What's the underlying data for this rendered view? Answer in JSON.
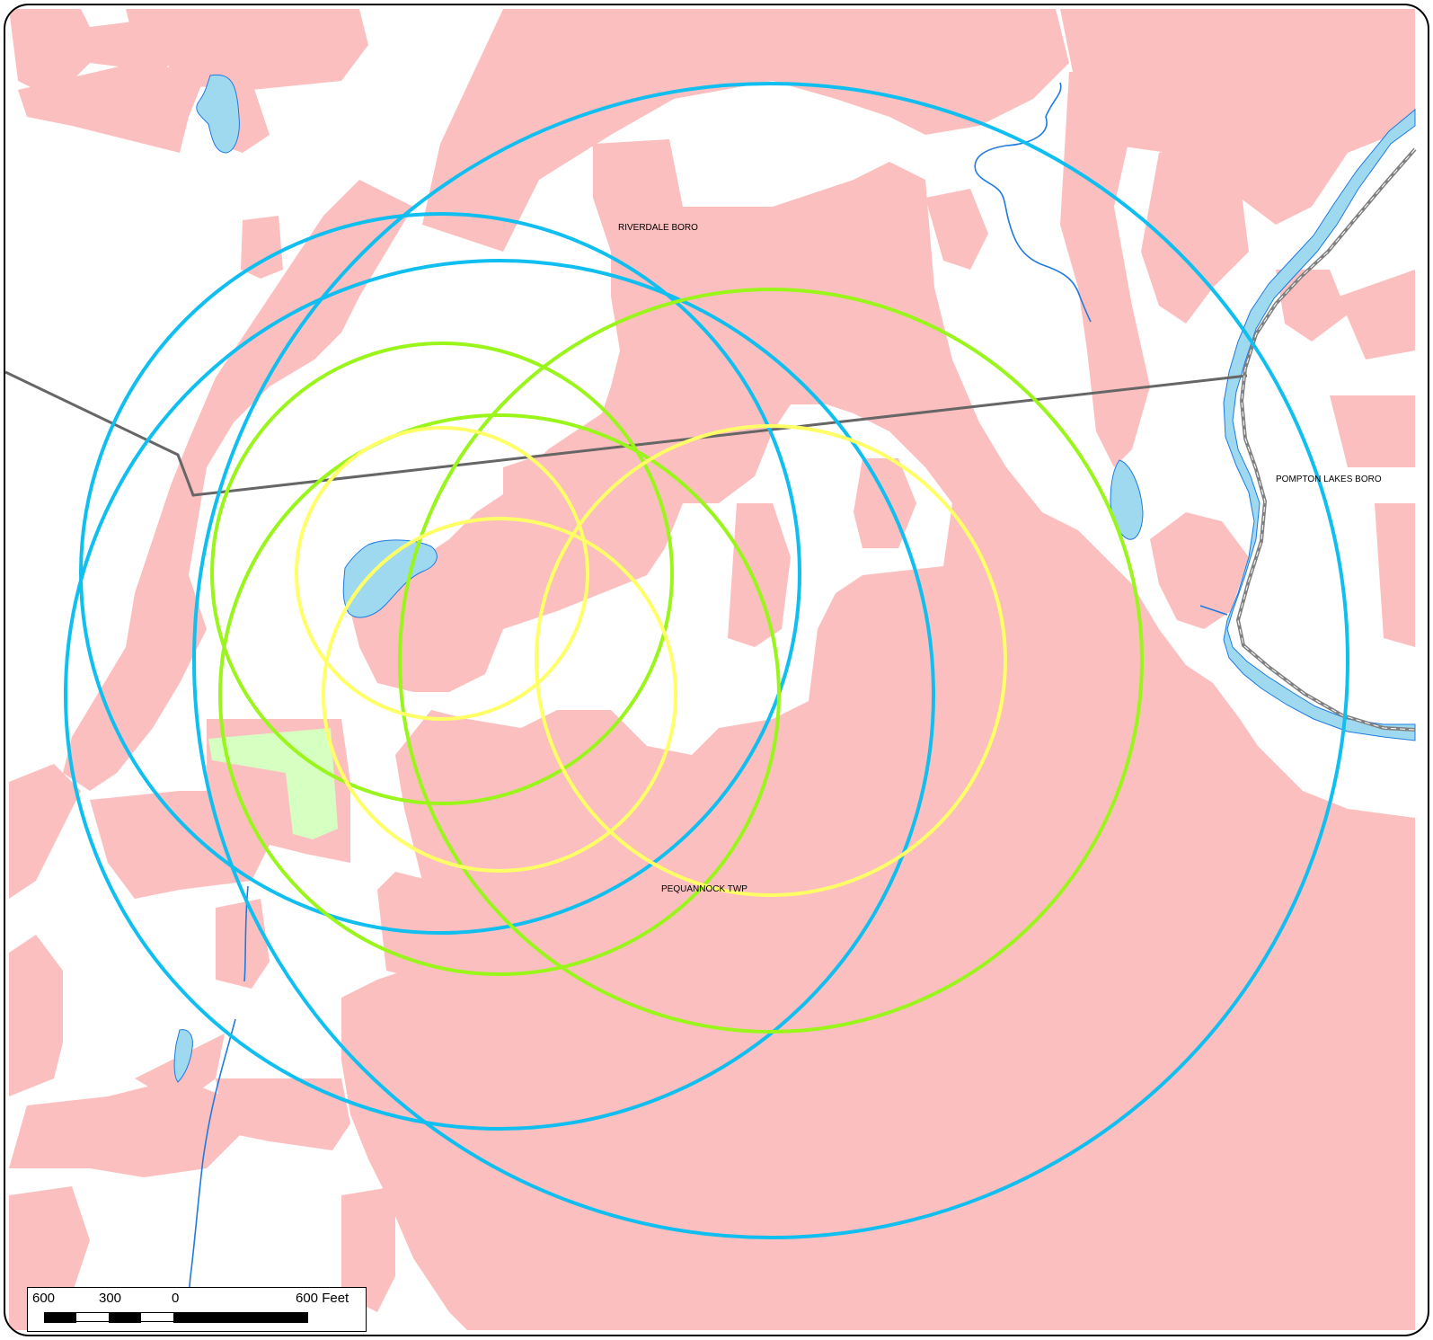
{
  "map": {
    "labels": {
      "riverdale": "RIVERDALE BORO",
      "pompton_lakes": "POMPTON LAKES BORO",
      "pequannock": "PEQUANNOCK TWP"
    },
    "colors": {
      "developed_land": "#fcbfbf",
      "water": "#9ed9f0",
      "stream": "#1e7be0",
      "park": "#d6ffc2",
      "boundary": "#666666",
      "ring_outer": "#10bff0",
      "ring_middle": "#99f51a",
      "ring_inner": "#ffff66"
    },
    "scale_bar": {
      "tick_left": "600",
      "tick_mid": "300",
      "tick_zero": "0",
      "tick_right": "600 Feet"
    }
  }
}
